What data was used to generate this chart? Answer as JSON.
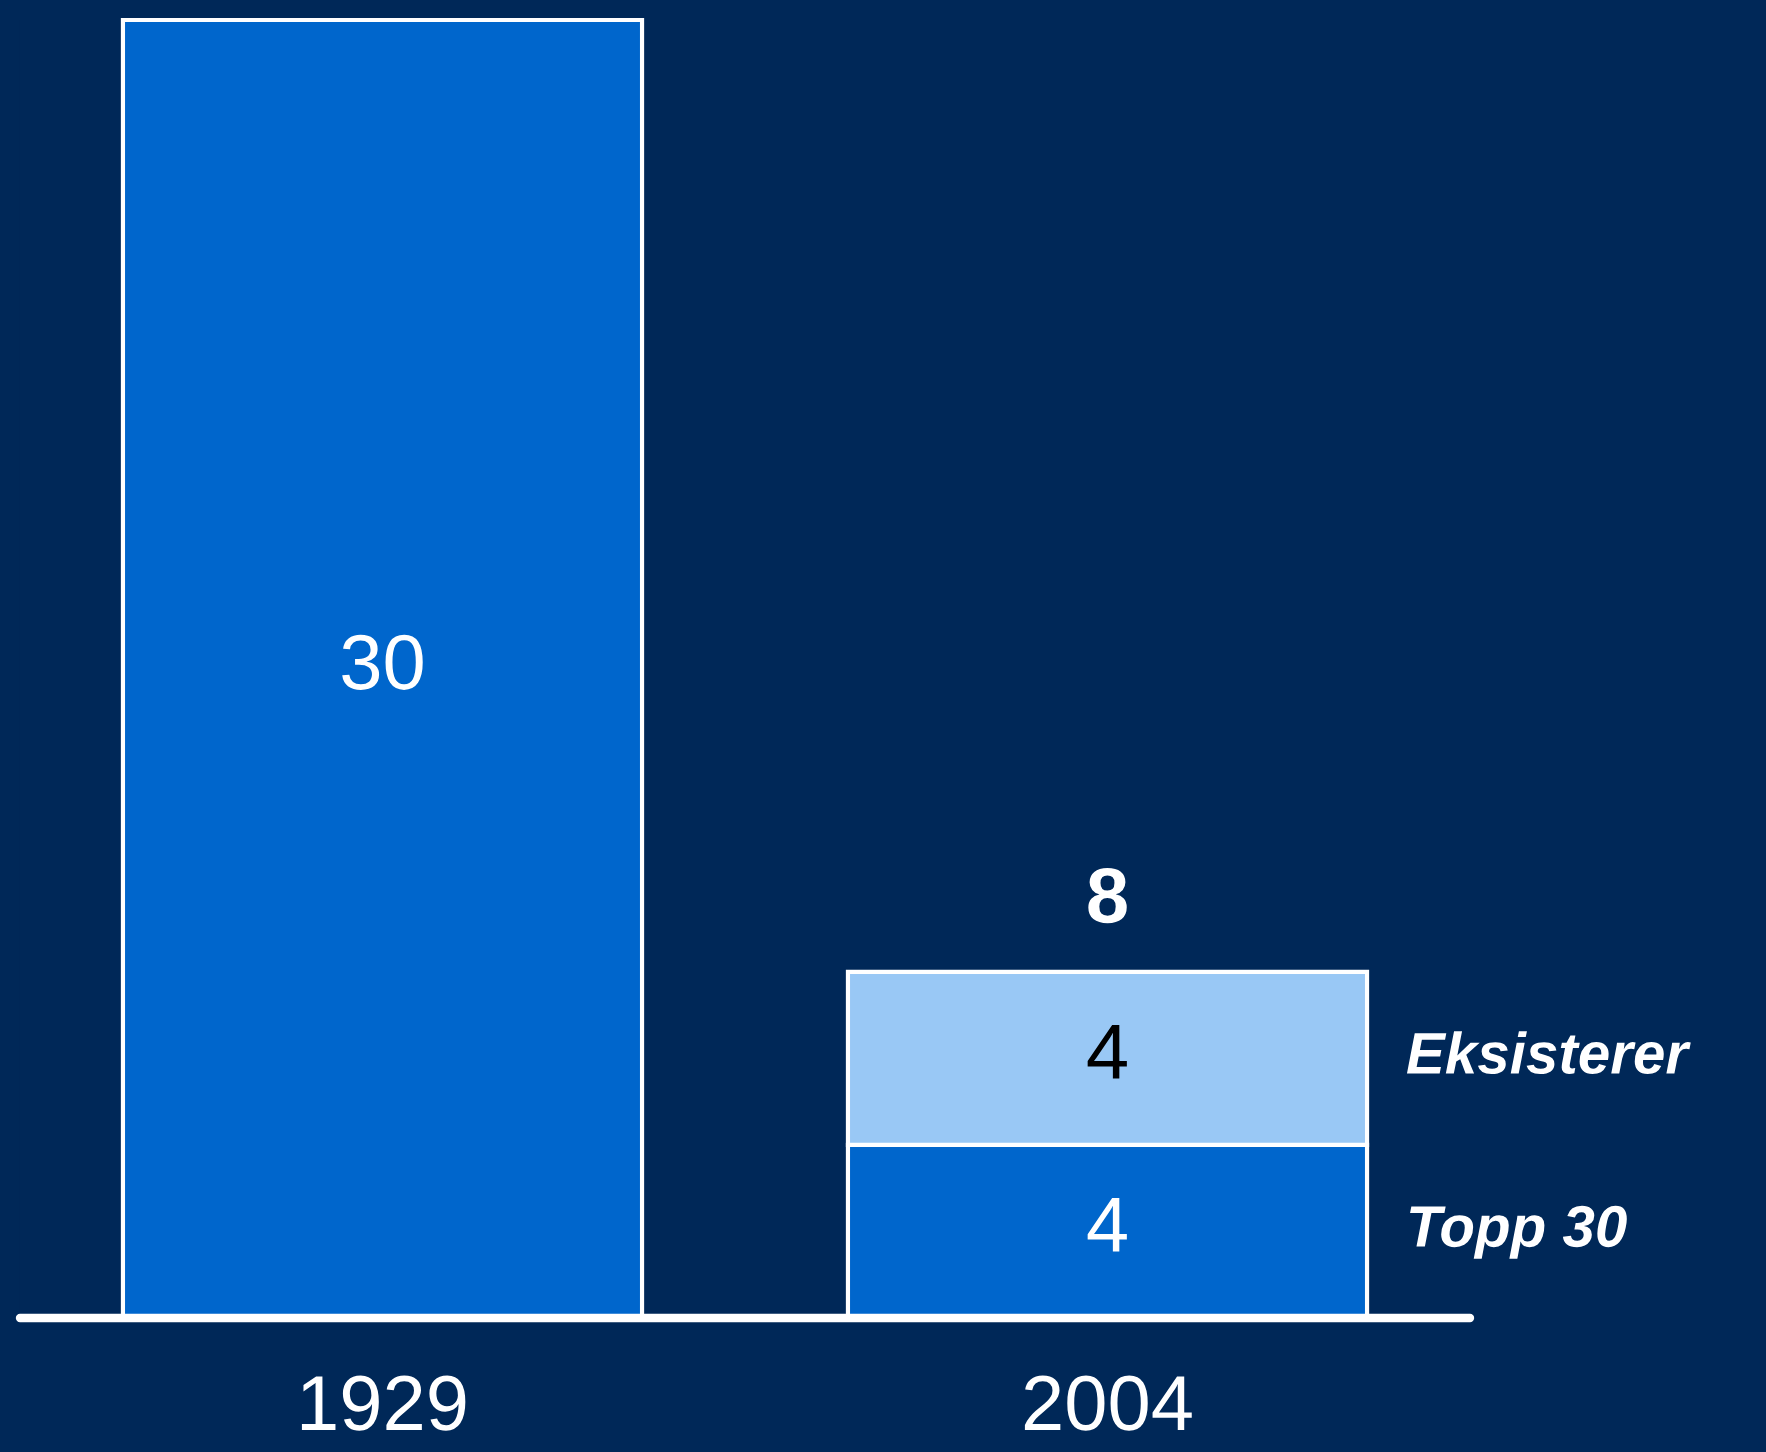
{
  "chart_data": {
    "type": "bar",
    "categories": [
      "1929",
      "2004"
    ],
    "stacked": true,
    "series": [
      {
        "name": "Topp 30",
        "color": "#0066cc",
        "values": [
          30,
          4
        ]
      },
      {
        "name": "Eksisterer",
        "color": "#99c8f5",
        "values": [
          null,
          4
        ]
      }
    ],
    "totals": [
      null,
      "8"
    ],
    "data_labels": true
  }
}
